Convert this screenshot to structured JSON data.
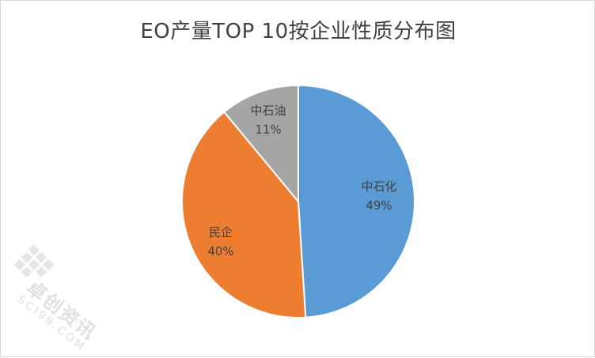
{
  "chart_data": {
    "type": "pie",
    "title": "EO产量TOP 10按企业性质分布图",
    "categories": [
      "中石化",
      "民企",
      "中石油"
    ],
    "values": [
      49,
      40,
      11
    ],
    "labels": [
      "49%",
      "40%",
      "11%"
    ],
    "colors": [
      "#5b9bd5",
      "#ed7d31",
      "#a5a5a5"
    ],
    "legend": "none",
    "start_angle": "12 o'clock, clockwise"
  },
  "watermark": {
    "brand": "卓创资讯",
    "domain": "SCI99.COM"
  }
}
